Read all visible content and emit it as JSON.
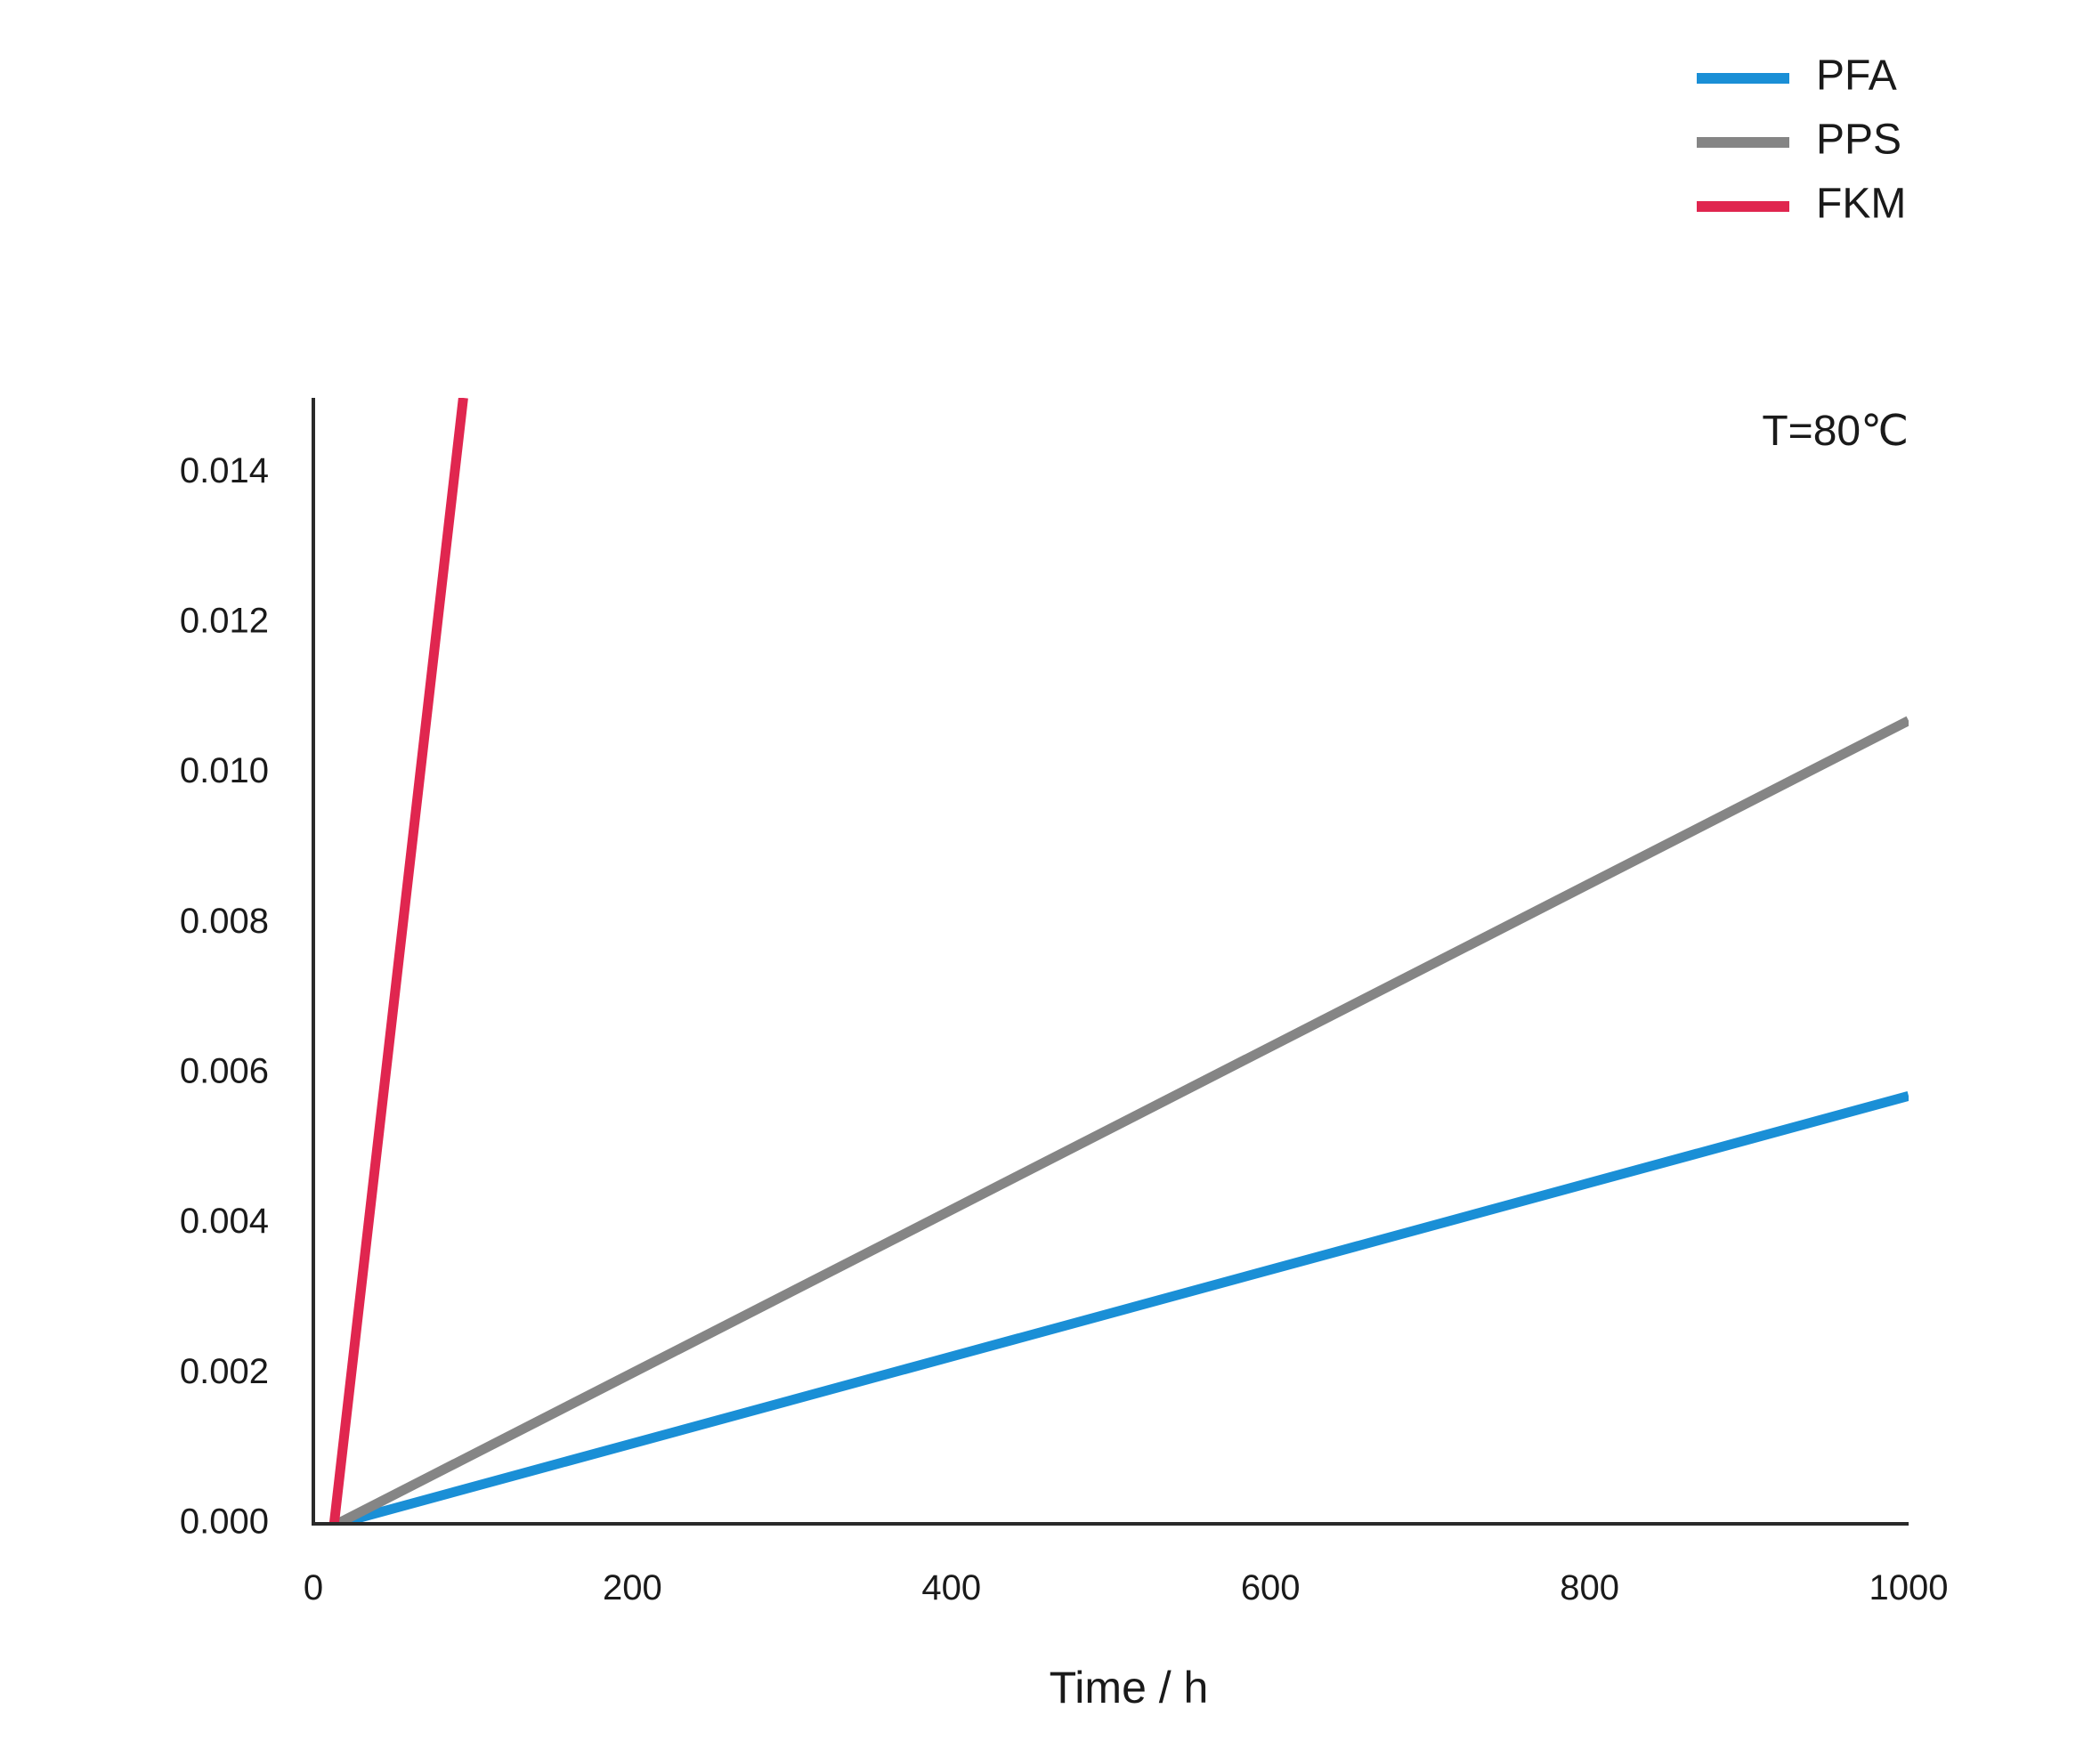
{
  "chart_data": {
    "type": "line",
    "title": "",
    "xlabel": "Time / h",
    "ylabel": "",
    "annotation": "T=80℃",
    "xlim": [
      0,
      1000
    ],
    "ylim": [
      0,
      0.015
    ],
    "xticks": [
      0,
      200,
      400,
      600,
      800,
      1000
    ],
    "xtick_labels": [
      "0",
      "200",
      "400",
      "600",
      "800",
      "1000"
    ],
    "yticks": [
      0,
      0.002,
      0.004,
      0.006,
      0.008,
      0.01,
      0.012,
      0.014
    ],
    "ytick_labels": [
      "0.000",
      "0.002",
      "0.004",
      "0.006",
      "0.008",
      "0.010",
      "0.012",
      "0.014"
    ],
    "grid": false,
    "legend_position": "top-right",
    "series": [
      {
        "name": "PFA",
        "color": "#1a8fd6",
        "x": [
          15,
          1000
        ],
        "y": [
          0,
          0.0057
        ]
      },
      {
        "name": "PPS",
        "color": "#858585",
        "x": [
          15,
          1000
        ],
        "y": [
          0,
          0.0107
        ]
      },
      {
        "name": "FKM",
        "color": "#e0264f",
        "x": [
          13,
          94
        ],
        "y": [
          0,
          0.015
        ]
      }
    ]
  }
}
